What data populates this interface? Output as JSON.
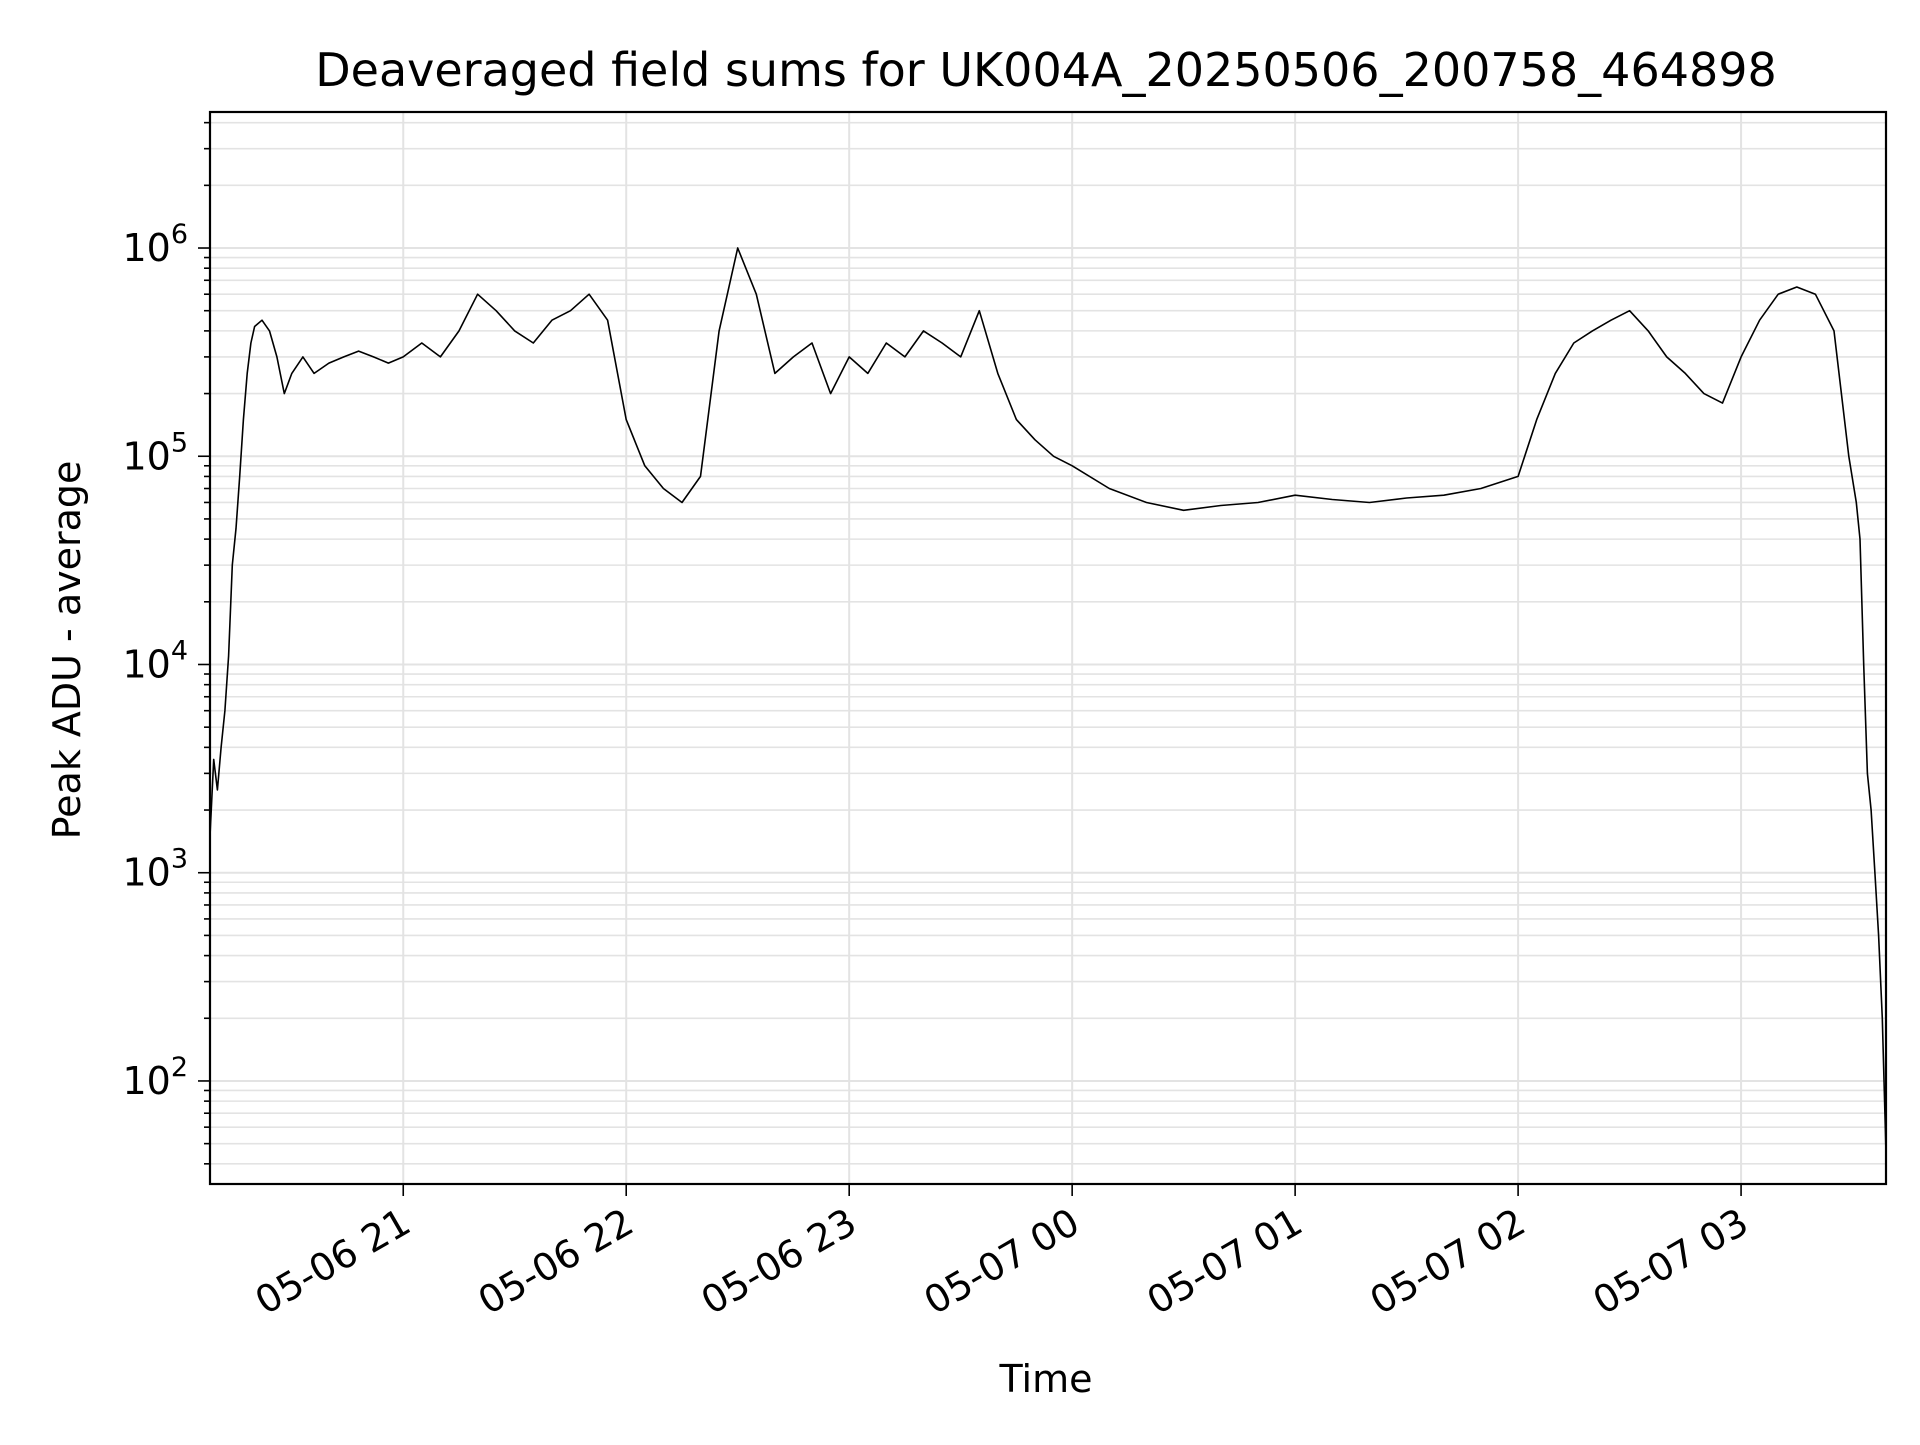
{
  "chart_data": {
    "type": "line",
    "title": "Deaveraged field sums for UK004A_20250506_200758_464898",
    "xlabel": "Time",
    "ylabel": "Peak ADU - average",
    "yscale": "log",
    "xlim": [
      "05-06 20:08",
      "05-07 03:39"
    ],
    "ylim": [
      32,
      4500000
    ],
    "grid": true,
    "x_ticks": [
      "05-06 21",
      "05-06 22",
      "05-06 23",
      "05-07 00",
      "05-07 01",
      "05-07 02",
      "05-07 03"
    ],
    "y_ticks": [
      {
        "value": 100,
        "base": "10",
        "exp": "2"
      },
      {
        "value": 1000,
        "base": "10",
        "exp": "3"
      },
      {
        "value": 10000,
        "base": "10",
        "exp": "4"
      },
      {
        "value": 100000,
        "base": "10",
        "exp": "5"
      },
      {
        "value": 1000000,
        "base": "10",
        "exp": "6"
      }
    ],
    "line_color": "#000000",
    "series": [
      {
        "x": [
          "05-06 20:08",
          "05-06 20:09",
          "05-06 20:10",
          "05-06 20:11",
          "05-06 20:12",
          "05-06 20:13",
          "05-06 20:14",
          "05-06 20:15",
          "05-06 20:16",
          "05-06 20:17",
          "05-06 20:18",
          "05-06 20:19",
          "05-06 20:20",
          "05-06 20:22",
          "05-06 20:24",
          "05-06 20:26",
          "05-06 20:28",
          "05-06 20:30",
          "05-06 20:33",
          "05-06 20:36",
          "05-06 20:40",
          "05-06 20:44",
          "05-06 20:48",
          "05-06 20:52",
          "05-06 20:56",
          "05-06 21:00",
          "05-06 21:05",
          "05-06 21:10",
          "05-06 21:15",
          "05-06 21:20",
          "05-06 21:25",
          "05-06 21:30",
          "05-06 21:35",
          "05-06 21:40",
          "05-06 21:45",
          "05-06 21:50",
          "05-06 21:55",
          "05-06 22:00",
          "05-06 22:05",
          "05-06 22:10",
          "05-06 22:15",
          "05-06 22:20",
          "05-06 22:25",
          "05-06 22:30",
          "05-06 22:35",
          "05-06 22:40",
          "05-06 22:45",
          "05-06 22:50",
          "05-06 22:55",
          "05-06 23:00",
          "05-06 23:05",
          "05-06 23:10",
          "05-06 23:15",
          "05-06 23:20",
          "05-06 23:25",
          "05-06 23:30",
          "05-06 23:35",
          "05-06 23:40",
          "05-06 23:45",
          "05-06 23:50",
          "05-06 23:55",
          "05-07 00:00",
          "05-07 00:10",
          "05-07 00:20",
          "05-07 00:30",
          "05-07 00:40",
          "05-07 00:50",
          "05-07 01:00",
          "05-07 01:10",
          "05-07 01:20",
          "05-07 01:30",
          "05-07 01:40",
          "05-07 01:50",
          "05-07 02:00",
          "05-07 02:05",
          "05-07 02:10",
          "05-07 02:15",
          "05-07 02:20",
          "05-07 02:25",
          "05-07 02:30",
          "05-07 02:35",
          "05-07 02:40",
          "05-07 02:45",
          "05-07 02:50",
          "05-07 02:55",
          "05-07 03:00",
          "05-07 03:05",
          "05-07 03:10",
          "05-07 03:15",
          "05-07 03:20",
          "05-07 03:25",
          "05-07 03:27",
          "05-07 03:29",
          "05-07 03:31",
          "05-07 03:32",
          "05-07 03:33",
          "05-07 03:34",
          "05-07 03:35",
          "05-07 03:36",
          "05-07 03:37",
          "05-07 03:38",
          "05-07 03:39"
        ],
        "y": [
          1500,
          3500,
          2500,
          4000,
          6000,
          11000,
          30000,
          45000,
          80000,
          150000,
          250000,
          350000,
          420000,
          450000,
          400000,
          300000,
          200000,
          250000,
          300000,
          250000,
          280000,
          300000,
          320000,
          300000,
          280000,
          300000,
          350000,
          300000,
          400000,
          600000,
          500000,
          400000,
          350000,
          450000,
          500000,
          600000,
          450000,
          150000,
          90000,
          70000,
          60000,
          80000,
          400000,
          1000000,
          600000,
          250000,
          300000,
          350000,
          200000,
          300000,
          250000,
          350000,
          300000,
          400000,
          350000,
          300000,
          500000,
          250000,
          150000,
          120000,
          100000,
          90000,
          70000,
          60000,
          55000,
          58000,
          60000,
          65000,
          62000,
          60000,
          63000,
          65000,
          70000,
          80000,
          150000,
          250000,
          350000,
          400000,
          450000,
          500000,
          400000,
          300000,
          250000,
          200000,
          180000,
          300000,
          450000,
          600000,
          650000,
          600000,
          400000,
          200000,
          100000,
          60000,
          40000,
          10000,
          3000,
          2000,
          1000,
          500,
          200,
          45
        ]
      }
    ]
  }
}
